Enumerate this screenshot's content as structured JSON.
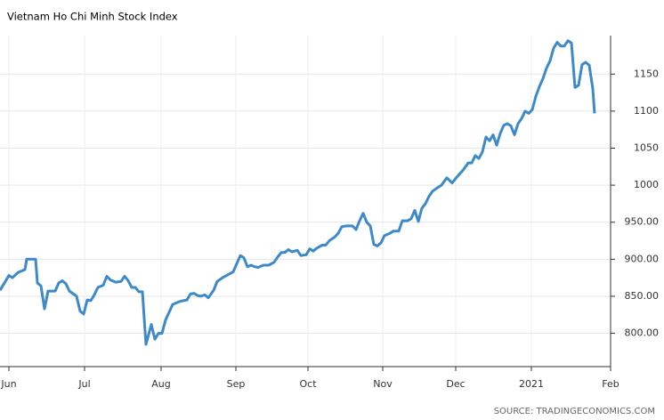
{
  "chart_data": {
    "type": "line",
    "title": "Vietnam Ho Chi Minh Stock Index",
    "source": "SOURCE: TRADINGECONOMICS.COM",
    "color": "#3d89c9",
    "grid": true,
    "x": [
      0,
      5,
      7,
      10,
      14,
      15,
      20,
      21,
      23,
      25,
      27,
      31,
      33,
      35,
      37,
      39,
      43,
      45,
      47,
      49,
      51,
      53,
      55,
      58,
      60,
      62,
      65,
      68,
      70,
      72,
      74,
      76,
      78,
      80,
      82,
      85,
      87,
      89,
      91,
      93,
      97,
      101,
      103,
      105,
      107,
      109,
      111,
      113,
      115,
      117,
      120,
      122,
      125,
      128,
      131,
      135,
      137,
      139,
      141,
      143,
      145,
      148,
      151,
      154,
      156,
      158,
      160,
      162,
      164,
      167,
      169,
      172,
      174,
      176,
      178,
      181,
      183,
      185,
      188,
      190,
      192,
      195,
      198,
      200,
      202,
      204,
      206,
      208,
      210,
      212,
      214,
      216,
      219,
      221,
      224,
      226,
      229,
      231,
      233,
      235,
      237,
      239,
      241,
      243,
      246,
      248,
      251,
      254,
      257,
      260,
      263,
      265,
      267,
      269,
      271,
      273,
      275,
      277,
      279,
      281,
      283,
      285,
      287,
      289,
      291,
      293,
      295,
      297,
      299,
      301,
      303,
      305,
      307,
      309,
      311,
      313,
      315,
      317,
      319,
      321,
      323,
      325,
      327,
      329,
      331,
      333,
      334
    ],
    "values": [
      858,
      878,
      875,
      882,
      886,
      900,
      900,
      868,
      864,
      833,
      857,
      857,
      868,
      871,
      867,
      857,
      850,
      830,
      826,
      845,
      844,
      852,
      862,
      865,
      877,
      872,
      869,
      870,
      877,
      871,
      862,
      862,
      856,
      856,
      785,
      812,
      792,
      800,
      800,
      818,
      839,
      843,
      844,
      845,
      853,
      854,
      851,
      850,
      852,
      848,
      858,
      870,
      875,
      879,
      883,
      905,
      902,
      890,
      892,
      890,
      889,
      892,
      892,
      896,
      903,
      909,
      909,
      913,
      910,
      912,
      905,
      906,
      914,
      911,
      915,
      919,
      919,
      925,
      930,
      935,
      944,
      945,
      945,
      940,
      952,
      962,
      950,
      945,
      920,
      918,
      922,
      932,
      935,
      938,
      938,
      952,
      952,
      955,
      966,
      951,
      969,
      975,
      985,
      992,
      997,
      1000,
      1010,
      1003,
      1012,
      1020,
      1030,
      1030,
      1040,
      1036,
      1045,
      1065,
      1060,
      1068,
      1054,
      1070,
      1081,
      1083,
      1080,
      1068,
      1083,
      1090,
      1100,
      1097,
      1102,
      1120,
      1133,
      1144,
      1158,
      1168,
      1185,
      1193,
      1188,
      1188,
      1195,
      1192,
      1132,
      1135,
      1163,
      1166,
      1162,
      1130,
      1097
    ],
    "xlim": [
      0,
      343
    ],
    "xticks": [
      {
        "value": 5,
        "label": "Jun"
      },
      {
        "value": 47.5,
        "label": "Jul"
      },
      {
        "value": 90.5,
        "label": "Aug"
      },
      {
        "value": 132.5,
        "label": "Sep"
      },
      {
        "value": 173,
        "label": "Oct"
      },
      {
        "value": 215,
        "label": "Nov"
      },
      {
        "value": 256,
        "label": "Dec"
      },
      {
        "value": 298.5,
        "label": "2021"
      },
      {
        "value": 343,
        "label": "Feb"
      }
    ],
    "ylim": [
      755,
      1202
    ],
    "yticks": [
      {
        "value": 800,
        "label": "800.00"
      },
      {
        "value": 850,
        "label": "850.00"
      },
      {
        "value": 900,
        "label": "900.00"
      },
      {
        "value": 950,
        "label": "950.00"
      },
      1000,
      1050,
      1100,
      1150
    ]
  }
}
